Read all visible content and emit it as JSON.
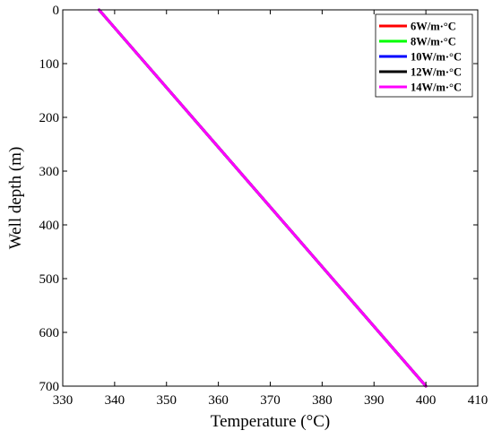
{
  "chart_data": {
    "type": "line",
    "title": "",
    "xlabel": "Temperature (°C)",
    "ylabel": "Well depth  (m)",
    "xlim": [
      330,
      410
    ],
    "ylim": [
      700,
      0
    ],
    "y_inverted": true,
    "x_ticks": [
      330,
      340,
      350,
      360,
      370,
      380,
      390,
      400,
      410
    ],
    "y_ticks": [
      0,
      100,
      200,
      300,
      400,
      500,
      600,
      700
    ],
    "grid": false,
    "legend_position": "top-right",
    "series": [
      {
        "name": "6W/m·°C",
        "color": "#ff0000",
        "x": [
          337.0,
          400.0
        ],
        "y": [
          0,
          700
        ]
      },
      {
        "name": "8W/m·°C",
        "color": "#00ff00",
        "x": [
          337.0,
          400.0
        ],
        "y": [
          0,
          700
        ]
      },
      {
        "name": "10W/m·°C",
        "color": "#0000ff",
        "x": [
          337.0,
          400.0
        ],
        "y": [
          0,
          700
        ]
      },
      {
        "name": "12W/m·°C",
        "color": "#000000",
        "x": [
          337.0,
          400.0
        ],
        "y": [
          0,
          700
        ]
      },
      {
        "name": "14W/m·°C",
        "color": "#ff00ff",
        "x": [
          337.0,
          400.0
        ],
        "y": [
          0,
          700
        ]
      }
    ]
  }
}
